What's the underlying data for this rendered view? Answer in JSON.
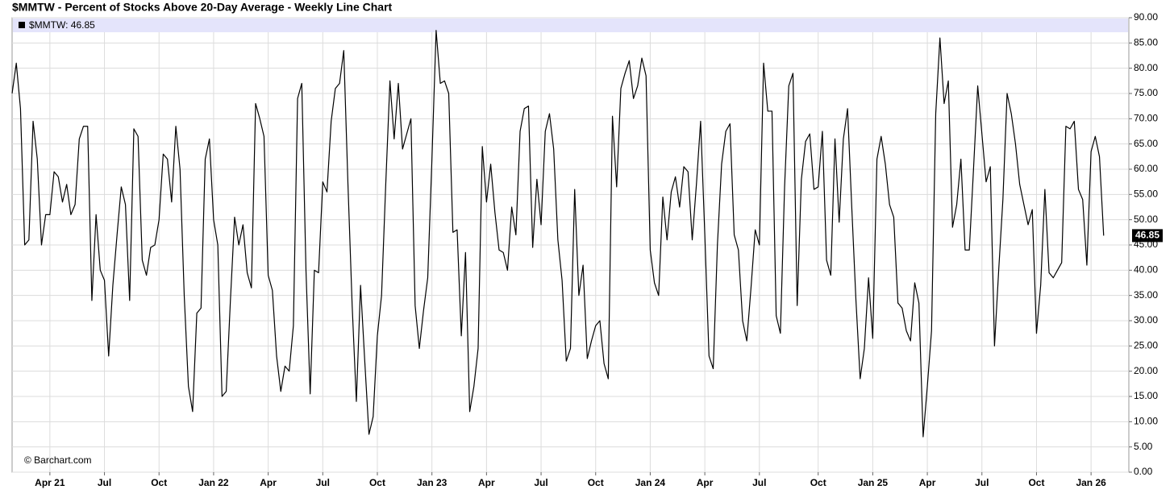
{
  "chart_data": {
    "type": "line",
    "title": "$MMTW - Percent of Stocks Above 20-Day Average - Weekly Line Chart",
    "credit": "© Barchart.com",
    "series": [
      {
        "name": "$MMTW: 46.85",
        "color": "#000000",
        "values": [
          75,
          81,
          72,
          45,
          46,
          69.5,
          62,
          45,
          51,
          51,
          59.5,
          58.5,
          53.5,
          57,
          51,
          53,
          66,
          68.5,
          68.5,
          34,
          51,
          40,
          38,
          23,
          37,
          47,
          56.5,
          53,
          34,
          68,
          66.5,
          42,
          39,
          44.5,
          45,
          50,
          63,
          62,
          53.5,
          68.5,
          60,
          35,
          17,
          12,
          31.5,
          32.5,
          62,
          66,
          50,
          45,
          15,
          16,
          34,
          50.5,
          45,
          49,
          39.5,
          36.5,
          73,
          70,
          66.5,
          39,
          36,
          23,
          16,
          21,
          20,
          29,
          74,
          77,
          40,
          15.5,
          40,
          39.5,
          57.5,
          55.5,
          69.5,
          76,
          77,
          83.5,
          57,
          33,
          14,
          37,
          22,
          7.5,
          11,
          27,
          35,
          57,
          77.5,
          66,
          77,
          64,
          67,
          70,
          33,
          24.5,
          32,
          38.5,
          62,
          87.5,
          77,
          77.5,
          75,
          47.5,
          48,
          27,
          43.5,
          12,
          17,
          24.5,
          64.5,
          53.5,
          61,
          51.5,
          44,
          43.5,
          40,
          52.5,
          47,
          67.5,
          72,
          72.5,
          44.5,
          58,
          49,
          67.5,
          71,
          64,
          46,
          38,
          22,
          24.5,
          56,
          35,
          41,
          22.5,
          26,
          29,
          30,
          21.5,
          18.5,
          70.5,
          56.5,
          76,
          79,
          81.5,
          74,
          76.5,
          82,
          78.5,
          44,
          37.5,
          35,
          54.5,
          46,
          55.5,
          58.5,
          52.5,
          60.5,
          59.5,
          46,
          57,
          69.5,
          47,
          23,
          20.5,
          45,
          61,
          67.5,
          69,
          47,
          44,
          30,
          26,
          36.5,
          48,
          45,
          81,
          71.5,
          71.5,
          31,
          27.5,
          56.5,
          76.5,
          79,
          33,
          58,
          65.5,
          67,
          56,
          56.5,
          67.5,
          42,
          39,
          66,
          49.5,
          66,
          72,
          52.5,
          34,
          18.5,
          24.5,
          38.5,
          26.5,
          62,
          66.5,
          61,
          53,
          50.5,
          33.5,
          32.5,
          28,
          26,
          37.5,
          33.5,
          7,
          17,
          28,
          71,
          86,
          73,
          77.5,
          48.5,
          53,
          62,
          44,
          44,
          60,
          76.5,
          67,
          57.5,
          60.5,
          25,
          40,
          54,
          75,
          71,
          65,
          57,
          53,
          49,
          52,
          27.5,
          37,
          56,
          39.5,
          38.5,
          40,
          41.5,
          68.5,
          68,
          69.5,
          56,
          54,
          41,
          63.5,
          66.5,
          62.5,
          46.85
        ]
      }
    ],
    "xlim": [
      0,
      266
    ],
    "xticks": [
      {
        "value": 9,
        "label": "Apr 21"
      },
      {
        "value": 22,
        "label": "Jul"
      },
      {
        "value": 35,
        "label": "Oct"
      },
      {
        "value": 48,
        "label": "Jan 22"
      },
      {
        "value": 61,
        "label": "Apr"
      },
      {
        "value": 74,
        "label": "Jul"
      },
      {
        "value": 87,
        "label": "Oct"
      },
      {
        "value": 100,
        "label": "Jan 23"
      },
      {
        "value": 113,
        "label": "Apr"
      },
      {
        "value": 126,
        "label": "Jul"
      },
      {
        "value": 139,
        "label": "Oct"
      },
      {
        "value": 152,
        "label": "Jan 24"
      },
      {
        "value": 165,
        "label": "Apr"
      },
      {
        "value": 178,
        "label": "Jul"
      },
      {
        "value": 192,
        "label": "Oct"
      },
      {
        "value": 205,
        "label": "Jan 25"
      },
      {
        "value": 218,
        "label": "Apr"
      },
      {
        "value": 231,
        "label": "Jul"
      },
      {
        "value": 244,
        "label": "Oct"
      },
      {
        "value": 257,
        "label": "Jan 26"
      }
    ],
    "ylim": [
      0,
      90
    ],
    "yticks": [
      {
        "value": 0,
        "label": "0.00"
      },
      {
        "value": 5,
        "label": "5.00"
      },
      {
        "value": 10,
        "label": "10.00"
      },
      {
        "value": 15,
        "label": "15.00"
      },
      {
        "value": 20,
        "label": "20.00"
      },
      {
        "value": 25,
        "label": "25.00"
      },
      {
        "value": 30,
        "label": "30.00"
      },
      {
        "value": 35,
        "label": "35.00"
      },
      {
        "value": 40,
        "label": "40.00"
      },
      {
        "value": 45,
        "label": "45.00"
      },
      {
        "value": 50,
        "label": "50.00"
      },
      {
        "value": 55,
        "label": "55.00"
      },
      {
        "value": 60,
        "label": "60.00"
      },
      {
        "value": 65,
        "label": "65.00"
      },
      {
        "value": 70,
        "label": "70.00"
      },
      {
        "value": 75,
        "label": "75.00"
      },
      {
        "value": 80,
        "label": "80.00"
      },
      {
        "value": 85,
        "label": "85.00"
      },
      {
        "value": 90,
        "label": "90.00"
      }
    ],
    "grid": true
  }
}
